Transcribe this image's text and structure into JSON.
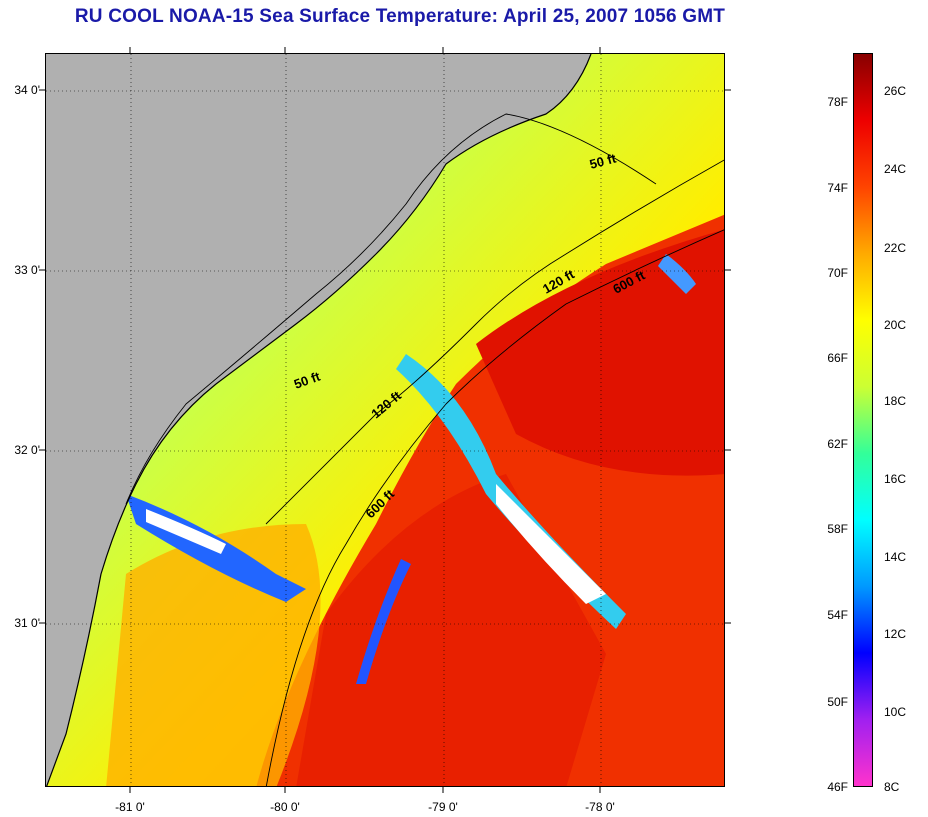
{
  "title": "RU COOL  NOAA-15  Sea Surface Temperature:  April 25, 2007 1056 GMT",
  "map": {
    "latitudes": [
      "34 0'",
      "33 0'",
      "32 0'",
      "31 0'"
    ],
    "longitudes": [
      "-81 0'",
      "-80 0'",
      "-79 0'",
      "-78 0'"
    ],
    "isobath_labels": [
      "50 ft",
      "120 ft",
      "600 ft",
      "50 ft",
      "120 ft",
      "600 ft"
    ],
    "land_color": "#b0b0b0"
  },
  "colorbar": {
    "fahrenheit": [
      "78F",
      "74F",
      "70F",
      "66F",
      "62F",
      "58F",
      "54F",
      "50F",
      "46F"
    ],
    "celsius": [
      "26C",
      "24C",
      "22C",
      "20C",
      "18C",
      "16C",
      "14C",
      "12C",
      "10C",
      "8C"
    ],
    "colors": [
      "#ff33cc",
      "#a020f0",
      "#0000ff",
      "#0099ff",
      "#00ffff",
      "#33ff99",
      "#ccff33",
      "#ffff00",
      "#ffaa00",
      "#ff4400",
      "#ee0000",
      "#880000"
    ]
  },
  "icons": [
    "land-icon"
  ]
}
